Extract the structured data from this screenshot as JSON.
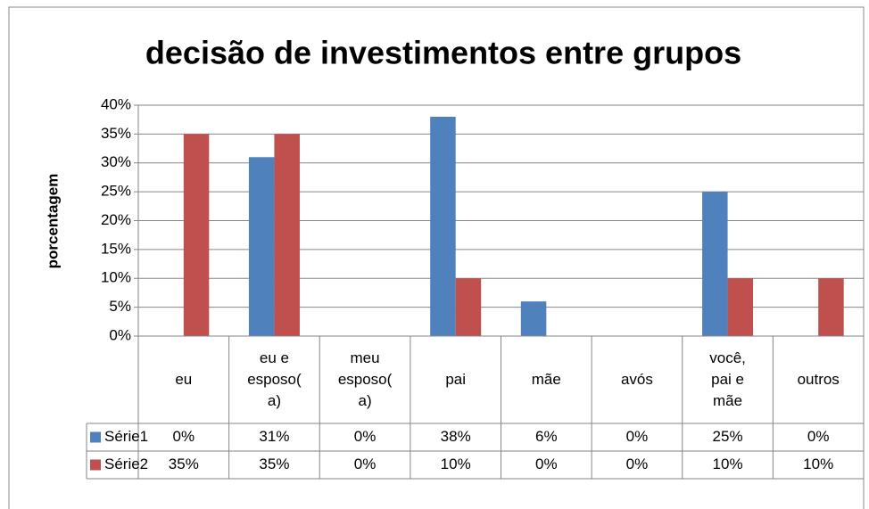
{
  "chart_data": {
    "type": "bar",
    "title": "decisão de investimentos entre grupos",
    "y_label": "porcentagem",
    "categories": [
      "eu",
      "eu e esposo(a)",
      "meu esposo(a)",
      "pai",
      "mãe",
      "avós",
      "você, pai e mãe",
      "outros"
    ],
    "series": [
      {
        "name": "Série1",
        "color": "#4f81bd",
        "values": [
          0,
          31,
          0,
          38,
          6,
          0,
          25,
          0
        ],
        "value_labels": [
          "0%",
          "31%",
          "0%",
          "38%",
          "6%",
          "0%",
          "25%",
          "0%"
        ]
      },
      {
        "name": "Série2",
        "color": "#c0504d",
        "values": [
          35,
          35,
          0,
          10,
          0,
          0,
          10,
          10
        ],
        "value_labels": [
          "35%",
          "35%",
          "0%",
          "10%",
          "0%",
          "0%",
          "10%",
          "10%"
        ]
      }
    ],
    "ylim": [
      0,
      40
    ],
    "yticks": [
      {
        "value": 0,
        "label": "0%"
      },
      {
        "value": 5,
        "label": "5%"
      },
      {
        "value": 10,
        "label": "10%"
      },
      {
        "value": 15,
        "label": "15%"
      },
      {
        "value": 20,
        "label": "20%"
      },
      {
        "value": 25,
        "label": "25%"
      },
      {
        "value": 30,
        "label": "30%"
      },
      {
        "value": 35,
        "label": "35%"
      },
      {
        "value": 40,
        "label": "40%"
      }
    ],
    "grid": true,
    "data_table": true
  }
}
